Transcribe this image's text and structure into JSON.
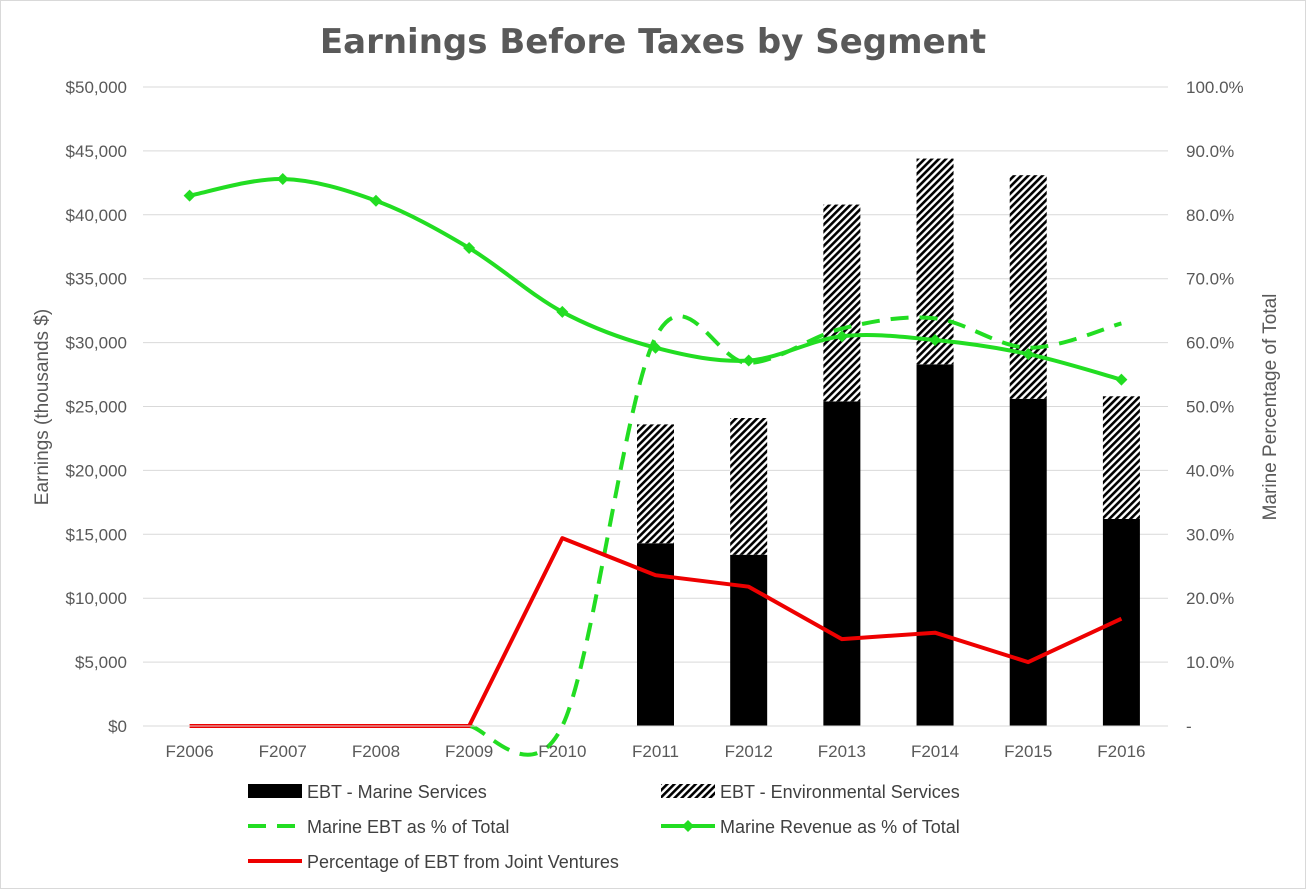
{
  "chart_data": {
    "type": "bar",
    "title": "Earnings Before Taxes by Segment",
    "categories": [
      "F2006",
      "F2007",
      "F2008",
      "F2009",
      "F2010",
      "F2011",
      "F2012",
      "F2013",
      "F2014",
      "F2015",
      "F2016"
    ],
    "left_axis": {
      "label": "Earnings (thousands $)",
      "range": [
        0,
        50000
      ],
      "ticks": [
        0,
        5000,
        10000,
        15000,
        20000,
        25000,
        30000,
        35000,
        40000,
        45000,
        50000
      ],
      "tick_labels": [
        "$0",
        "$5,000",
        "$10,000",
        "$15,000",
        "$20,000",
        "$25,000",
        "$30,000",
        "$35,000",
        "$40,000",
        "$45,000",
        "$50,000"
      ]
    },
    "right_axis": {
      "label": "Marine Percentage of Total",
      "range": [
        0,
        100
      ],
      "ticks": [
        0,
        10,
        20,
        30,
        40,
        50,
        60,
        70,
        80,
        90,
        100
      ],
      "tick_labels": [
        "-",
        "10.0%",
        "20.0%",
        "30.0%",
        "40.0%",
        "50.0%",
        "60.0%",
        "70.0%",
        "80.0%",
        "90.0%",
        "100.0%"
      ]
    },
    "grid": true,
    "legend_position": "bottom",
    "series": [
      {
        "name": "EBT - Marine Services",
        "type": "stacked-bar",
        "axis": "left",
        "style": "solid",
        "color": "#000000",
        "values": [
          null,
          null,
          null,
          null,
          null,
          14300,
          13400,
          25400,
          28300,
          25600,
          16200
        ]
      },
      {
        "name": "EBT - Environmental Services",
        "type": "stacked-bar",
        "axis": "left",
        "style": "hatched",
        "color": "#000000",
        "values": [
          null,
          null,
          null,
          null,
          null,
          9300,
          10700,
          15400,
          16100,
          17500,
          9600
        ]
      },
      {
        "name": "Marine EBT as % of Total",
        "type": "line",
        "axis": "right",
        "style": "dashed",
        "color": "#22dd22",
        "values": [
          null,
          null,
          null,
          0,
          0,
          60.8,
          56.8,
          62.2,
          63.8,
          59.2,
          63.0
        ]
      },
      {
        "name": "Marine Revenue as % of Total",
        "type": "line",
        "axis": "right",
        "style": "solid-diamond",
        "color": "#22dd22",
        "values": [
          83.0,
          85.6,
          82.2,
          74.8,
          64.8,
          59.2,
          57.2,
          61.0,
          60.4,
          58.2,
          54.2
        ]
      },
      {
        "name": "Percentage of EBT from Joint Ventures",
        "type": "line",
        "axis": "right",
        "style": "solid",
        "color": "#ee0000",
        "values": [
          0,
          0,
          0,
          0,
          29.4,
          23.6,
          21.8,
          13.6,
          14.6,
          10.0,
          16.8
        ]
      }
    ]
  }
}
